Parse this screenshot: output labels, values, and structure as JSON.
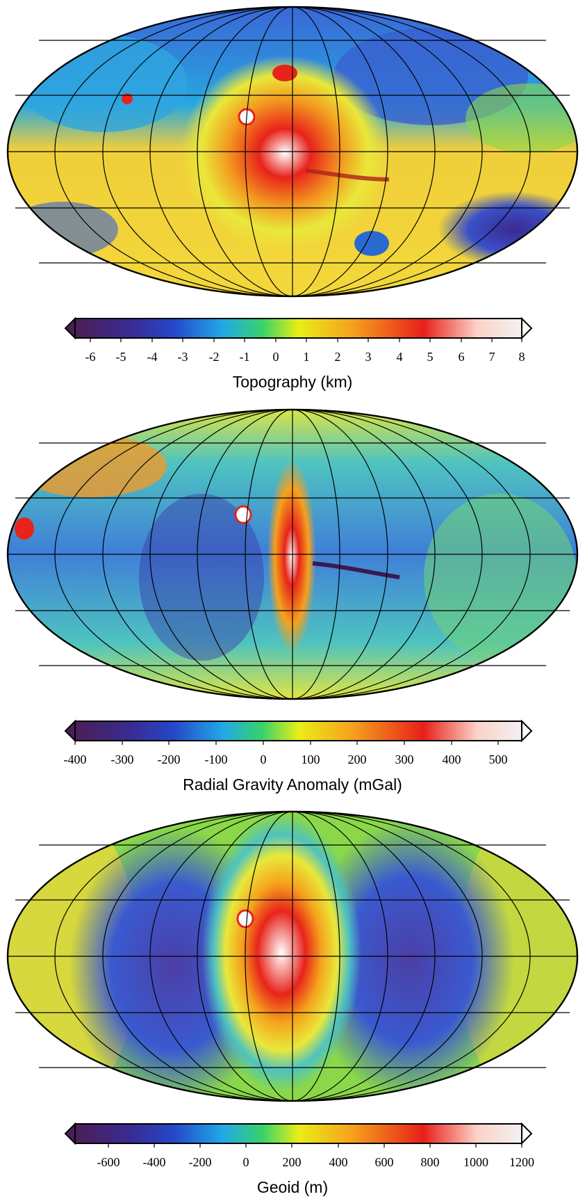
{
  "colors": {
    "stops": [
      "#f2f2f2",
      "#fbd2c8",
      "#e8201a",
      "#f5a21c",
      "#e9ee16",
      "#38d26a",
      "#22a8e8",
      "#2447c8",
      "#3a2a90",
      "#4a1f55"
    ],
    "panels": [
      {
        "name": "topography",
        "base": "#f3d83a",
        "low": "#3c5fd0",
        "mid": "#22b3e0",
        "high": "#e8231b",
        "peak": "#ffffff"
      },
      {
        "name": "gravity",
        "base": "#3f7fd8",
        "low": "#3a3aa8",
        "mid": "#f2df3a",
        "high": "#e8231b",
        "peak": "#ffffff"
      },
      {
        "name": "geoid",
        "base": "#46a0e4",
        "low": "#4b3fa5",
        "mid": "#f2df3a",
        "high": "#e8231b",
        "peak": "#ffffff"
      }
    ]
  },
  "panels": [
    {
      "title": "Topography (km)",
      "ticks": [
        "-6",
        "-5",
        "-4",
        "-3",
        "-2",
        "-1",
        "0",
        "1",
        "2",
        "3",
        "4",
        "5",
        "6",
        "7",
        "8"
      ]
    },
    {
      "title": "Radial Gravity Anomaly (mGal)",
      "ticks": [
        "-400",
        "-300",
        "-200",
        "-100",
        "0",
        "100",
        "200",
        "300",
        "400",
        "500"
      ]
    },
    {
      "title": "Geoid (m)",
      "ticks": [
        "-600",
        "-400",
        "-200",
        "0",
        "200",
        "400",
        "600",
        "800",
        "1000",
        "1200"
      ]
    }
  ]
}
